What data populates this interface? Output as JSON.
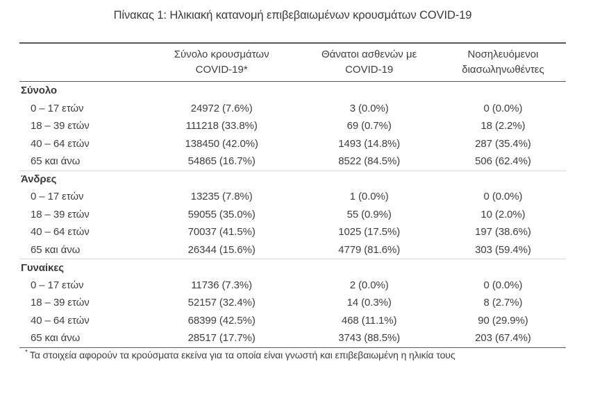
{
  "page": {
    "title": "Πίνακας 1: Ηλικιακή κατανομή επιβεβαιωμένων κρουσμάτων COVID-19",
    "footnote_marker": "*",
    "footnote_text": "Τα στοιχεία αφορούν τα κρούσματα εκείνα για τα οποία είναι γνωστή και επιβεβαιωμένη η ηλικία τους"
  },
  "colors": {
    "text": "#3e3e40",
    "rule_dark": "#55565a",
    "rule_light": "#d9d9d9",
    "background": "#ffffff"
  },
  "table": {
    "columns": [
      {
        "line1": "Σύνολο κρουσμάτων",
        "line2": "COVID-19*"
      },
      {
        "line1": "Θάνατοι ασθενών με",
        "line2": "COVID-19"
      },
      {
        "line1": "Νοσηλευόμενοι",
        "line2": "διασωληνωθέντες"
      }
    ],
    "sections": [
      {
        "name": "Σύνολο",
        "rows": [
          {
            "label": "0 – 17 ετών",
            "cases": "24972 (7.6%)",
            "deaths": "3 (0.0%)",
            "intubated": "0 (0.0%)"
          },
          {
            "label": "18 – 39 ετών",
            "cases": "111218 (33.8%)",
            "deaths": "69 (0.7%)",
            "intubated": "18 (2.2%)"
          },
          {
            "label": "40 – 64 ετών",
            "cases": "138450 (42.0%)",
            "deaths": "1493 (14.8%)",
            "intubated": "287 (35.4%)"
          },
          {
            "label": "65 και άνω",
            "cases": "54865 (16.7%)",
            "deaths": "8522 (84.5%)",
            "intubated": "506 (62.4%)"
          }
        ]
      },
      {
        "name": "Άνδρες",
        "rows": [
          {
            "label": "0 – 17 ετών",
            "cases": "13235 (7.8%)",
            "deaths": "1 (0.0%)",
            "intubated": "0 (0.0%)"
          },
          {
            "label": "18 – 39 ετών",
            "cases": "59055 (35.0%)",
            "deaths": "55 (0.9%)",
            "intubated": "10 (2.0%)"
          },
          {
            "label": "40 – 64 ετών",
            "cases": "70037 (41.5%)",
            "deaths": "1025 (17.5%)",
            "intubated": "197 (38.6%)"
          },
          {
            "label": "65 και άνω",
            "cases": "26344 (15.6%)",
            "deaths": "4779 (81.6%)",
            "intubated": "303 (59.4%)"
          }
        ]
      },
      {
        "name": "Γυναίκες",
        "rows": [
          {
            "label": "0 – 17 ετών",
            "cases": "11736 (7.3%)",
            "deaths": "2 (0.0%)",
            "intubated": "0 (0.0%)"
          },
          {
            "label": "18 – 39 ετών",
            "cases": "52157 (32.4%)",
            "deaths": "14 (0.3%)",
            "intubated": "8 (2.7%)"
          },
          {
            "label": "40 – 64 ετών",
            "cases": "68399 (42.5%)",
            "deaths": "468 (11.1%)",
            "intubated": "90 (29.9%)"
          },
          {
            "label": "65 και άνω",
            "cases": "28517 (17.7%)",
            "deaths": "3743 (88.5%)",
            "intubated": "203 (67.4%)"
          }
        ]
      }
    ]
  }
}
